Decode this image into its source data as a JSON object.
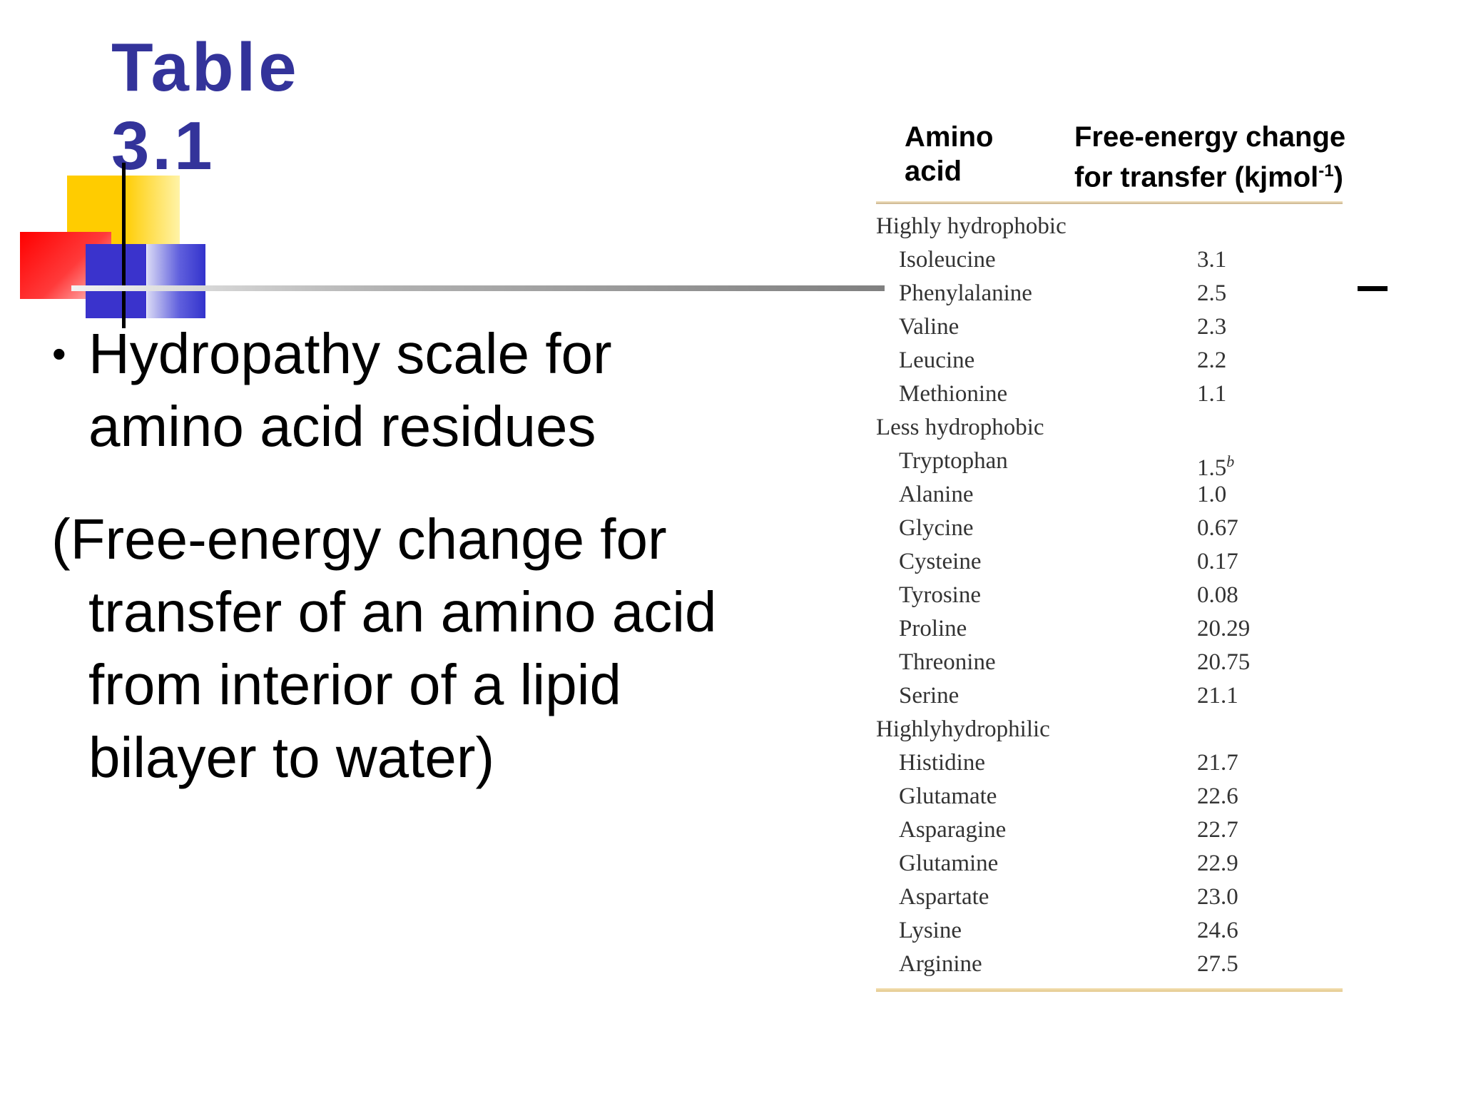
{
  "slide": {
    "title_line1": "Table",
    "title_line2": "3.1",
    "bullet_marker": "•",
    "bullet_text": "Hydropathy scale for\namino acid residues",
    "paren_text": "(Free-energy change for\ntransfer of an amino acid\nfrom interior of a lipid\nbilayer to water)"
  },
  "colors": {
    "title": "#33339a",
    "deco_yellow": "#ffcc00",
    "deco_red": "#ff0000",
    "deco_blue": "#3a33cc"
  },
  "table": {
    "header_col1": "Amino\nacid",
    "header_col2_line1": "Free-energy change",
    "header_col2_line2": "for transfer (kjmol",
    "header_col2_sup": "-1",
    "header_col2_close": ")",
    "rows": [
      {
        "type": "category",
        "name": "Highly hydrophobic",
        "value": ""
      },
      {
        "type": "item",
        "name": "Isoleucine",
        "value": "3.1"
      },
      {
        "type": "item",
        "name": "Phenylalanine",
        "value": "2.5"
      },
      {
        "type": "item",
        "name": "Valine",
        "value": "2.3"
      },
      {
        "type": "item",
        "name": "Leucine",
        "value": "2.2"
      },
      {
        "type": "item",
        "name": "Methionine",
        "value": "1.1"
      },
      {
        "type": "category",
        "name": "Less hydrophobic",
        "value": ""
      },
      {
        "type": "item",
        "name": "Tryptophan",
        "value": "1.5",
        "sup": "b"
      },
      {
        "type": "item",
        "name": "Alanine",
        "value": "1.0"
      },
      {
        "type": "item",
        "name": "Glycine",
        "value": "0.67"
      },
      {
        "type": "item",
        "name": "Cysteine",
        "value": "0.17"
      },
      {
        "type": "item",
        "name": "Tyrosine",
        "value": "0.08"
      },
      {
        "type": "item",
        "name": "Proline",
        "value": "20.29"
      },
      {
        "type": "item",
        "name": "Threonine",
        "value": "20.75"
      },
      {
        "type": "item",
        "name": "Serine",
        "value": "21.1"
      },
      {
        "type": "category",
        "name": "Highlyhydrophilic",
        "value": ""
      },
      {
        "type": "item",
        "name": "Histidine",
        "value": "21.7"
      },
      {
        "type": "item",
        "name": "Glutamate",
        "value": "22.6"
      },
      {
        "type": "item",
        "name": "Asparagine",
        "value": "22.7"
      },
      {
        "type": "item",
        "name": "Glutamine",
        "value": "22.9"
      },
      {
        "type": "item",
        "name": "Aspartate",
        "value": "23.0"
      },
      {
        "type": "item",
        "name": "Lysine",
        "value": "24.6"
      },
      {
        "type": "item",
        "name": "Arginine",
        "value": "27.5"
      }
    ]
  }
}
